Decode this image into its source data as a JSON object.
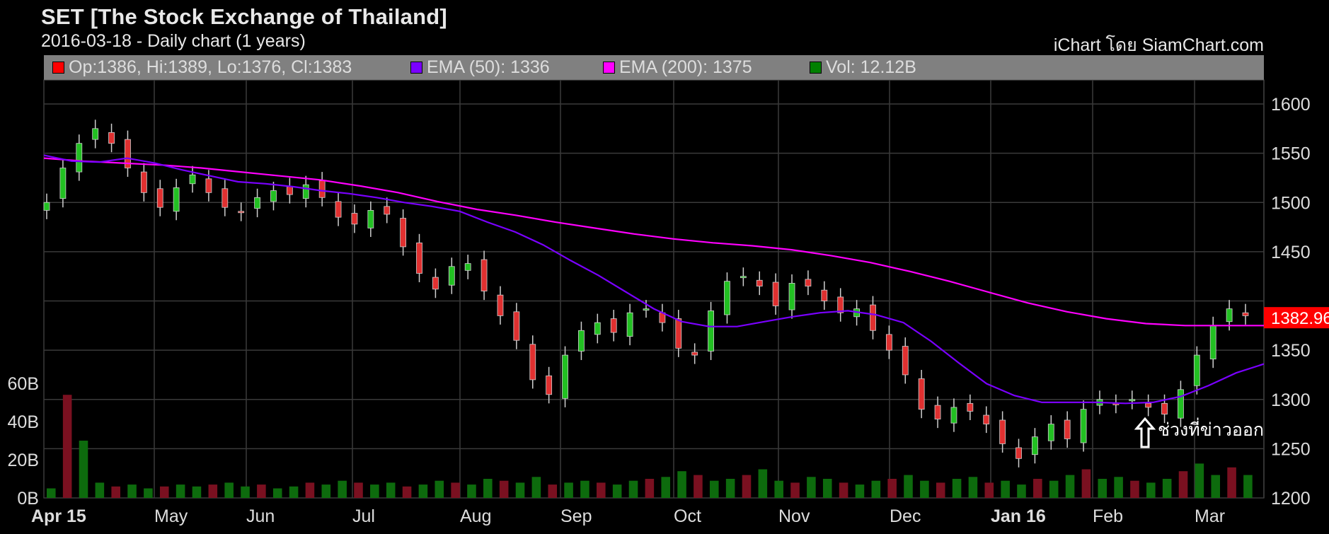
{
  "header": {
    "title": "SET [The Stock Exchange of Thailand]",
    "subtitle": "2016-03-18 - Daily chart (1 years)",
    "credit": "iChart โดย SiamChart.com"
  },
  "legend": {
    "ohlc": {
      "label": "Op:1386, Hi:1389, Lo:1376, Cl:1383",
      "color": "#ff0000"
    },
    "ema50": {
      "label": "EMA (50): 1336",
      "color": "#7a00ff"
    },
    "ema200": {
      "label": "EMA (200): 1375",
      "color": "#ff00ff"
    },
    "volume": {
      "label": "Vol: 12.12B",
      "color": "#008000"
    }
  },
  "price_tag": "1382.96",
  "annotation": "ช่วงที่ข่าวออก",
  "chart_data": {
    "type": "candlestick",
    "price_axis": {
      "ticks": [
        "1600",
        "1550",
        "1500",
        "1450",
        "1350",
        "1300",
        "1250",
        "1200"
      ],
      "range": [
        1200,
        1620
      ]
    },
    "volume_axis": {
      "ticks": [
        "60B",
        "40B",
        "20B",
        "0B"
      ],
      "range": [
        0,
        60
      ]
    },
    "months": [
      "Apr 15",
      "May",
      "Jun",
      "Jul",
      "Aug",
      "Sep",
      "Oct",
      "Nov",
      "Dec",
      "Jan 16",
      "Feb",
      "Mar"
    ],
    "close": [
      1500,
      1535,
      1560,
      1575,
      1560,
      1535,
      1510,
      1495,
      1515,
      1528,
      1510,
      1495,
      1490,
      1505,
      1512,
      1508,
      1518,
      1505,
      1485,
      1478,
      1492,
      1488,
      1455,
      1428,
      1412,
      1435,
      1438,
      1410,
      1385,
      1360,
      1320,
      1305,
      1345,
      1370,
      1378,
      1368,
      1388,
      1392,
      1378,
      1352,
      1345,
      1390,
      1420,
      1425,
      1415,
      1395,
      1418,
      1415,
      1400,
      1388,
      1392,
      1370,
      1350,
      1325,
      1290,
      1280,
      1292,
      1288,
      1275,
      1255,
      1240,
      1262,
      1275,
      1260,
      1290,
      1300,
      1295,
      1300,
      1292,
      1285,
      1310,
      1345,
      1375,
      1392,
      1385
    ],
    "ema50": [
      1548,
      1542,
      1541,
      1545,
      1540,
      1533,
      1527,
      1521,
      1519,
      1516,
      1512,
      1509,
      1505,
      1500,
      1496,
      1491,
      1480,
      1470,
      1457,
      1441,
      1426,
      1409,
      1392,
      1379,
      1374,
      1374,
      1379,
      1384,
      1388,
      1390,
      1386,
      1378,
      1359,
      1337,
      1316,
      1304,
      1297,
      1297,
      1297,
      1296,
      1297,
      1303,
      1314,
      1327,
      1336
    ],
    "ema200": [
      1545,
      1542,
      1540,
      1538,
      1535,
      1531,
      1527,
      1523,
      1517,
      1510,
      1501,
      1493,
      1487,
      1480,
      1474,
      1468,
      1463,
      1459,
      1456,
      1452,
      1446,
      1439,
      1430,
      1420,
      1409,
      1398,
      1389,
      1382,
      1377,
      1375,
      1375,
      1375
    ],
    "volume": [
      5,
      54,
      30,
      8,
      6,
      7,
      5,
      6,
      7,
      6,
      7,
      8,
      6,
      7,
      5,
      6,
      8,
      7,
      9,
      8,
      7,
      8,
      6,
      7,
      9,
      8,
      7,
      10,
      9,
      8,
      11,
      7,
      8,
      9,
      8,
      7,
      9,
      10,
      11,
      14,
      12,
      9,
      10,
      12,
      15,
      9,
      8,
      11,
      10,
      8,
      7,
      9,
      10,
      12,
      9,
      8,
      10,
      11,
      8,
      9,
      7,
      10,
      9,
      12,
      15,
      10,
      11,
      9,
      8,
      10,
      14,
      18,
      12,
      16,
      12
    ]
  }
}
